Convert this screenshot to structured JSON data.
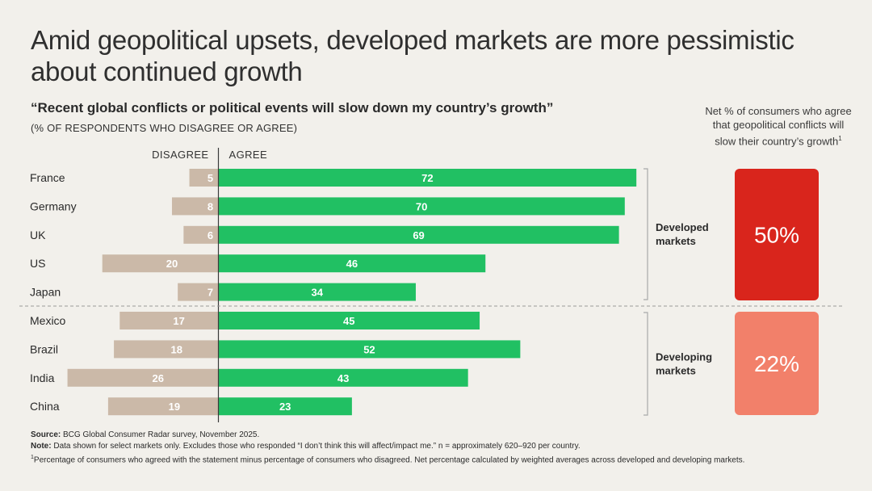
{
  "title": "Amid geopolitical upsets, developed markets are more pessimistic about continued growth",
  "subtitle": "“Recent global conflicts or political events will slow down my country’s growth”",
  "subtitle_note": "(% OF RESPONDENTS WHO DISAGREE OR AGREE)",
  "net_panel": {
    "title": "Net % of consumers who agree that geopolitical conflicts will slow their country’s growth",
    "footnote_mark": "1"
  },
  "footer": {
    "source_label": "Source:",
    "source_text": "BCG Global Consumer Radar survey, November 2025.",
    "note_label": "Note:",
    "note_text": "Data shown for select markets only. Excludes those who responded “I don’t think this will affect/impact me.” n = approximately 620–920 per country.",
    "footnote_mark": "1",
    "footnote_text": "Percentage of consumers who agreed with the statement minus percentage of consumers who disagreed. Net percentage calculated by weighted averages across developed and developing markets."
  },
  "colors": {
    "agree": "#21c063",
    "disagree": "#cbb9a8",
    "developed_net": "#d9251c",
    "developing_net": "#f2806a"
  },
  "chart_data": {
    "type": "bar",
    "orientation": "horizontal-diverging",
    "categories": [
      "France",
      "Germany",
      "UK",
      "US",
      "Japan",
      "Mexico",
      "Brazil",
      "India",
      "China"
    ],
    "series": [
      {
        "name": "DISAGREE",
        "values": [
          5,
          8,
          6,
          20,
          7,
          17,
          18,
          26,
          19
        ]
      },
      {
        "name": "AGREE",
        "values": [
          72,
          70,
          69,
          46,
          34,
          45,
          52,
          43,
          23
        ]
      }
    ],
    "groups": [
      {
        "name": "Developed markets",
        "label_line1": "Developed",
        "label_line2": "markets",
        "members": [
          "France",
          "Germany",
          "UK",
          "US",
          "Japan"
        ],
        "net_percent": 50,
        "net_label": "50%"
      },
      {
        "name": "Developing markets",
        "label_line1": "Developing",
        "label_line2": "markets",
        "members": [
          "Mexico",
          "Brazil",
          "India",
          "China"
        ],
        "net_percent": 22,
        "net_label": "22%"
      }
    ]
  }
}
